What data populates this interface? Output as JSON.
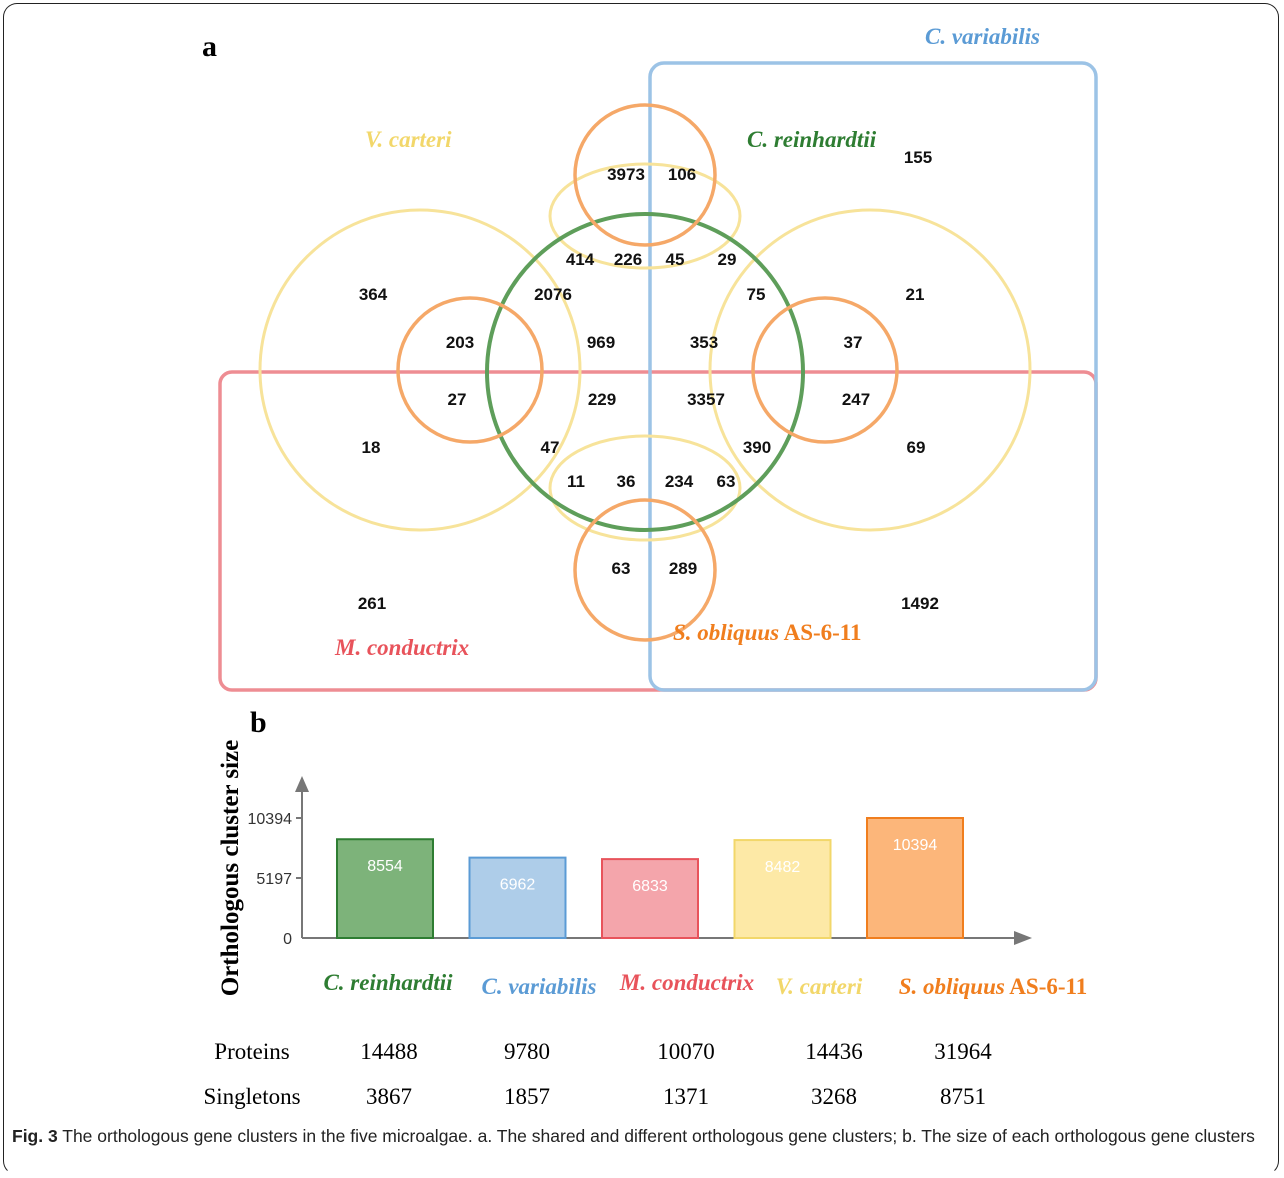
{
  "panel_a_label": "a",
  "panel_b_label": "b",
  "venn": {
    "species": {
      "cvar": {
        "name": "C. variabilis",
        "color": "#5b9bd5"
      },
      "vcar": {
        "name": "V. carteri",
        "color": "#f2d76a"
      },
      "crei": {
        "name": "C. reinhardtii",
        "color": "#2e7d32"
      },
      "mcon": {
        "name": "M. conductrix",
        "color": "#e8535b"
      },
      "sobl": {
        "name": "S. obliquus",
        "suffix": " AS-6-11",
        "color": "#f07e1e"
      }
    },
    "region_values": [
      "155",
      "3973",
      "106",
      "364",
      "414",
      "226",
      "45",
      "29",
      "21",
      "2076",
      "75",
      "203",
      "969",
      "353",
      "37",
      "27",
      "229",
      "3357",
      "247",
      "18",
      "47",
      "390",
      "69",
      "11",
      "36",
      "234",
      "63",
      "63",
      "289",
      "261",
      "1492"
    ]
  },
  "chart_data": {
    "type": "bar",
    "ylabel": "Orthologous cluster size",
    "yticks": [
      0,
      5197,
      10394
    ],
    "ylim": [
      0,
      12000
    ],
    "categories": [
      "C. reinhardtii",
      "C. variabilis",
      "M. conductrix",
      "V. carteri",
      "S. obliquus"
    ],
    "category_suffix": [
      "",
      "",
      "",
      "",
      " AS-6-11"
    ],
    "values": [
      8554,
      6962,
      6833,
      8482,
      10394
    ],
    "bar_colors": [
      "#7db37a",
      "#aecde9",
      "#f4a5ab",
      "#fde9a6",
      "#fcb67a"
    ],
    "label_colors": [
      "#2e7d32",
      "#5b9bd5",
      "#e8535b",
      "#f2d76a",
      "#f07e1e"
    ]
  },
  "table": {
    "rows": [
      {
        "label": "Proteins",
        "values": [
          "14488",
          "9780",
          "10070",
          "14436",
          "31964"
        ]
      },
      {
        "label": "Singletons",
        "values": [
          "3867",
          "1857",
          "1371",
          "3268",
          "8751"
        ]
      }
    ]
  },
  "caption": {
    "label": "Fig. 3",
    "text": " The orthologous gene clusters in the five microalgae. a. The shared and different orthologous gene clusters; b. The size of each orthologous gene clusters"
  }
}
